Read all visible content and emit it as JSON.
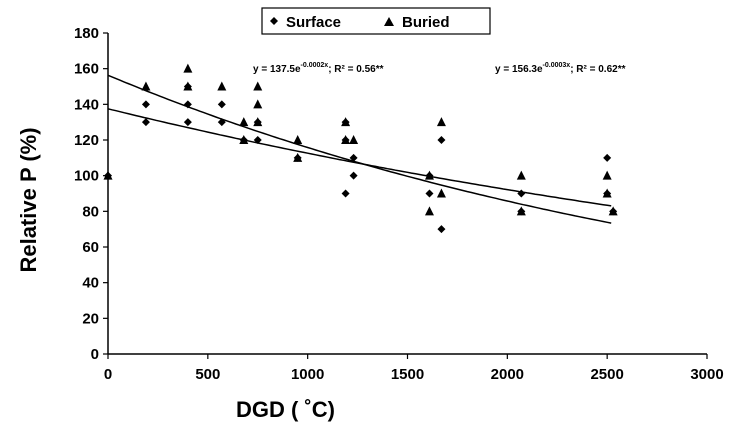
{
  "chart_data": {
    "type": "scatter",
    "xlabel": "DGD ( ˚C)",
    "ylabel": "Relative P (%)",
    "xlim": [
      0,
      3000
    ],
    "ylim": [
      0,
      180
    ],
    "xticks": [
      0,
      500,
      1000,
      1500,
      2000,
      2500,
      3000
    ],
    "yticks": [
      0,
      20,
      40,
      60,
      80,
      100,
      120,
      140,
      160,
      180
    ],
    "grid": false,
    "legend_position": "top-center",
    "series": [
      {
        "name": "Surface",
        "marker": "diamond",
        "points": [
          [
            0,
            100
          ],
          [
            190,
            140
          ],
          [
            190,
            130
          ],
          [
            400,
            150
          ],
          [
            400,
            140
          ],
          [
            400,
            130
          ],
          [
            570,
            140
          ],
          [
            570,
            130
          ],
          [
            680,
            120
          ],
          [
            750,
            130
          ],
          [
            750,
            120
          ],
          [
            950,
            110
          ],
          [
            1190,
            130
          ],
          [
            1190,
            120
          ],
          [
            1190,
            90
          ],
          [
            1230,
            110
          ],
          [
            1230,
            100
          ],
          [
            1610,
            100
          ],
          [
            1610,
            90
          ],
          [
            1670,
            120
          ],
          [
            1670,
            70
          ],
          [
            2070,
            90
          ],
          [
            2070,
            80
          ],
          [
            2500,
            110
          ],
          [
            2500,
            90
          ],
          [
            2530,
            80
          ]
        ],
        "fit": {
          "a": 137.5,
          "b": -0.0002,
          "equation": "y = 137.5e",
          "exponent": "-0.0002x",
          "r2": "; R² = 0.56**"
        }
      },
      {
        "name": "Buried",
        "marker": "triangle",
        "points": [
          [
            0,
            100
          ],
          [
            190,
            150
          ],
          [
            400,
            160
          ],
          [
            400,
            150
          ],
          [
            570,
            150
          ],
          [
            680,
            130
          ],
          [
            680,
            120
          ],
          [
            750,
            150
          ],
          [
            750,
            140
          ],
          [
            750,
            130
          ],
          [
            950,
            120
          ],
          [
            950,
            110
          ],
          [
            1190,
            130
          ],
          [
            1190,
            120
          ],
          [
            1230,
            120
          ],
          [
            1610,
            100
          ],
          [
            1610,
            80
          ],
          [
            1670,
            130
          ],
          [
            1670,
            90
          ],
          [
            2070,
            100
          ],
          [
            2070,
            80
          ],
          [
            2500,
            100
          ],
          [
            2500,
            90
          ],
          [
            2530,
            80
          ]
        ],
        "fit": {
          "a": 156.3,
          "b": -0.0003,
          "equation": "y = 156.3e",
          "exponent": "-0.0003x",
          "r2": "; R² = 0.62**"
        }
      }
    ]
  }
}
